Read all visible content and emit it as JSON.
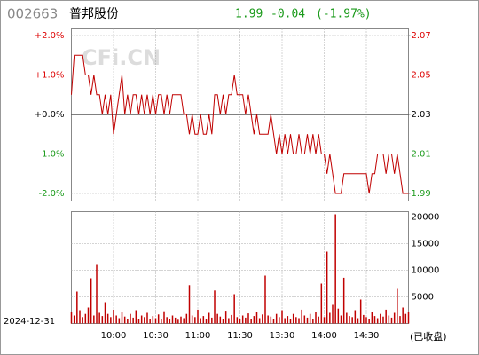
{
  "header": {
    "code": "002663",
    "name": "普邦股份",
    "last": "1.99",
    "change": "-0.04",
    "change_pct": "(-1.97%)"
  },
  "watermark": "CFi.CN",
  "footer": {
    "date": "2024-12-31",
    "status": "(已收盘)"
  },
  "chart_data": [
    {
      "type": "line",
      "color": "#c00000",
      "grid": true,
      "ylim": [
        1.99,
        2.07
      ],
      "yticks": [
        2.07,
        2.05,
        2.03,
        2.01,
        1.99
      ],
      "y2lim": [
        -2,
        2
      ],
      "y2ticks": [
        {
          "value": 2,
          "label": "+2.0%"
        },
        {
          "value": 1,
          "label": "+1.0%"
        },
        {
          "value": 0,
          "label": "+0.0%"
        },
        {
          "value": -1,
          "label": "-1.0%"
        },
        {
          "value": -2,
          "label": "-2.0%"
        }
      ],
      "values": [
        2.04,
        2.06,
        2.06,
        2.06,
        2.06,
        2.05,
        2.05,
        2.04,
        2.05,
        2.04,
        2.04,
        2.03,
        2.04,
        2.03,
        2.04,
        2.02,
        2.03,
        2.04,
        2.05,
        2.03,
        2.04,
        2.03,
        2.04,
        2.04,
        2.03,
        2.04,
        2.03,
        2.04,
        2.03,
        2.04,
        2.03,
        2.04,
        2.04,
        2.03,
        2.04,
        2.03,
        2.04,
        2.04,
        2.04,
        2.04,
        2.03,
        2.03,
        2.02,
        2.03,
        2.02,
        2.02,
        2.03,
        2.02,
        2.02,
        2.03,
        2.02,
        2.04,
        2.04,
        2.03,
        2.04,
        2.03,
        2.04,
        2.04,
        2.05,
        2.04,
        2.04,
        2.04,
        2.03,
        2.04,
        2.03,
        2.02,
        2.03,
        2.02,
        2.02,
        2.02,
        2.02,
        2.03,
        2.02,
        2.01,
        2.02,
        2.01,
        2.02,
        2.01,
        2.02,
        2.01,
        2.01,
        2.02,
        2.01,
        2.01,
        2.02,
        2.01,
        2.02,
        2.01,
        2.02,
        2.01,
        2.01,
        2.0,
        2.01,
        2.0,
        1.99,
        1.99,
        1.99,
        2.0,
        2.0,
        2.0,
        2.0,
        2.0,
        2.0,
        2.0,
        2.0,
        2.0,
        1.99,
        2.0,
        2.0,
        2.01,
        2.01,
        2.01,
        2.0,
        2.01,
        2.01,
        2.0,
        2.01,
        2.0,
        1.99,
        1.99,
        1.99
      ]
    },
    {
      "type": "bar",
      "color": "#c00000",
      "grid": true,
      "ylim": [
        0,
        21000
      ],
      "yticks": [
        5000,
        10000,
        15000,
        20000
      ],
      "categories": [
        null,
        null,
        null,
        null,
        null,
        null,
        null,
        null,
        null,
        null,
        null,
        null,
        null,
        null,
        null,
        "10:00",
        null,
        null,
        null,
        null,
        null,
        null,
        null,
        null,
        null,
        null,
        null,
        null,
        null,
        null,
        "10:30",
        null,
        null,
        null,
        null,
        null,
        null,
        null,
        null,
        null,
        null,
        null,
        null,
        null,
        null,
        "11:00",
        null,
        null,
        null,
        null,
        null,
        null,
        null,
        null,
        null,
        null,
        null,
        null,
        null,
        null,
        "11:30",
        null,
        null,
        null,
        null,
        null,
        null,
        null,
        null,
        null,
        null,
        null,
        null,
        null,
        null,
        "13:30",
        null,
        null,
        null,
        null,
        null,
        null,
        null,
        null,
        null,
        null,
        null,
        null,
        null,
        null,
        "14:00",
        null,
        null,
        null,
        null,
        null,
        null,
        null,
        null,
        null,
        null,
        null,
        null,
        null,
        null,
        "14:30",
        null,
        null,
        null,
        null,
        null,
        null,
        null,
        null,
        null,
        null,
        null,
        null,
        null,
        null,
        null
      ],
      "values": [
        2200,
        1500,
        6000,
        2500,
        1200,
        1800,
        3000,
        8500,
        1500,
        11000,
        2000,
        1400,
        4000,
        1800,
        1200,
        2600,
        1500,
        1000,
        2200,
        1300,
        900,
        1800,
        1100,
        2500,
        800,
        1500,
        1200,
        2000,
        900,
        1400,
        1000,
        1700,
        800,
        2300,
        1200,
        900,
        1500,
        1100,
        700,
        1300,
        1000,
        1800,
        7200,
        1500,
        1200,
        2600,
        1000,
        1400,
        900,
        2000,
        1100,
        6200,
        1800,
        1300,
        900,
        2400,
        1000,
        1600,
        5500,
        1200,
        800,
        1500,
        1100,
        1900,
        900,
        1400,
        2200,
        1000,
        1700,
        9000,
        1500,
        1300,
        800,
        1800,
        1200,
        2500,
        1000,
        1400,
        900,
        1800,
        1200,
        1000,
        2600,
        1500,
        1100,
        1800,
        900,
        2100,
        1300,
        7500,
        1200,
        13500,
        2000,
        3500,
        20500,
        2800,
        1500,
        8600,
        2000,
        1400,
        1200,
        2500,
        1000,
        4500,
        1600,
        1200,
        900,
        2200,
        1400,
        1000,
        1800,
        1300,
        2600,
        1500,
        1100,
        2000,
        6500,
        1400,
        3000,
        1800,
        2200
      ]
    }
  ]
}
